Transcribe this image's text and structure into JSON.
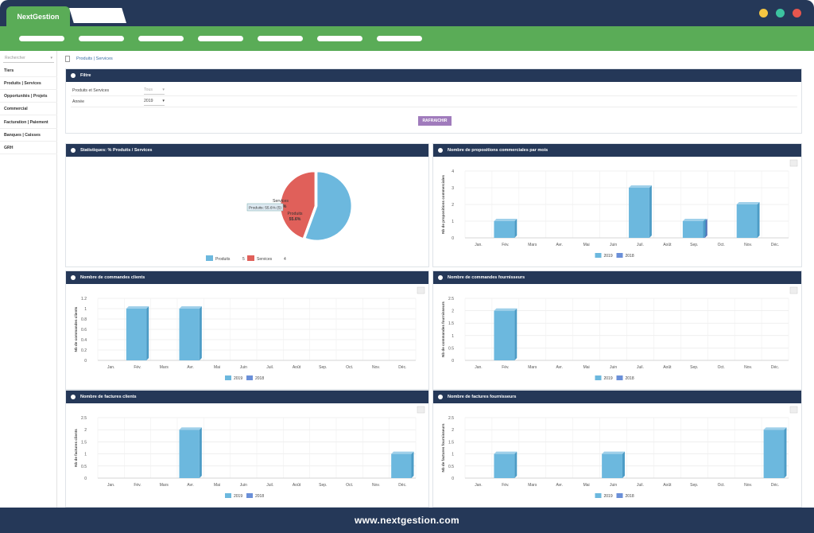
{
  "browser": {
    "tab_title": "NextGestion",
    "window_dot_colors": [
      "#f4c542",
      "#3cc3a0",
      "#e6564e"
    ]
  },
  "sidebar": {
    "search_placeholder": "Rechercher",
    "items": [
      {
        "label": "Tiers"
      },
      {
        "label": "Produits | Services"
      },
      {
        "label": "Opportunités | Projets"
      },
      {
        "label": "Commercial"
      },
      {
        "label": "Facturation | Paiement"
      },
      {
        "label": "Banques | Caisses"
      },
      {
        "label": "GRH"
      }
    ]
  },
  "breadcrumb": {
    "text": "Produits | Services"
  },
  "filter": {
    "title": "Filtre",
    "rows": [
      {
        "label": "Produits et Services",
        "value": "Tous"
      },
      {
        "label": "Année",
        "value": "2019"
      }
    ],
    "refresh_label": "RAFRAICHIR"
  },
  "colors": {
    "header": "#253858",
    "green": "#5aac57",
    "series_2019": "#6cb8de",
    "series_2018": "#6a8fd8",
    "services": "#e0605a",
    "button": "#a07bbc"
  },
  "months": [
    "Jan.",
    "Fév.",
    "Mars",
    "Avr.",
    "Mai",
    "Juin",
    "Juil.",
    "Août",
    "Sep.",
    "Oct.",
    "Nov.",
    "Déc."
  ],
  "legend": {
    "y2019": "2019",
    "y2018": "2018"
  },
  "chart_data": [
    {
      "type": "pie",
      "title": "Statistiques: % Produits / Services",
      "labels": [
        "Produits",
        "Services"
      ],
      "values": [
        55.6,
        44.4
      ],
      "slice_labels": [
        "55.6%",
        "44.4%"
      ],
      "tooltip": "Produits: 55.6% (5)",
      "legend": [
        {
          "name": "Produits",
          "count": "5"
        },
        {
          "name": "Services",
          "count": "4"
        }
      ]
    },
    {
      "type": "bar",
      "title": "Nombre de propositions commerciales par mois",
      "ylabel": "Nb de propositions commerciales",
      "ylim": [
        0,
        4
      ],
      "yticks": [
        "0",
        "1",
        "2",
        "3",
        "4"
      ],
      "series": [
        {
          "name": "2019",
          "values": [
            0,
            1,
            0,
            0,
            0,
            0,
            3,
            0,
            1,
            0,
            2,
            0
          ]
        },
        {
          "name": "2018",
          "values": [
            0,
            0,
            0,
            0,
            0,
            0,
            0,
            0,
            1,
            0,
            0,
            0
          ]
        }
      ]
    },
    {
      "type": "bar",
      "title": "Nombre de commandes clients",
      "ylabel": "Nb de commandes clients",
      "ylim": [
        0,
        1.2
      ],
      "yticks": [
        "0",
        "0.2",
        "0.4",
        "0.6",
        "0.8",
        "1",
        "1.2"
      ],
      "series": [
        {
          "name": "2019",
          "values": [
            0,
            1,
            0,
            1,
            0,
            0,
            0,
            0,
            0,
            0,
            0,
            0
          ]
        },
        {
          "name": "2018",
          "values": [
            0,
            0,
            0,
            0,
            0,
            0,
            0,
            0,
            0,
            0,
            0,
            0
          ]
        }
      ]
    },
    {
      "type": "bar",
      "title": "Nombre de commandes fournisseurs",
      "ylabel": "Nb de commandes fournisseurs",
      "ylim": [
        0,
        2.5
      ],
      "yticks": [
        "0",
        "0.5",
        "1",
        "1.5",
        "2",
        "2.5"
      ],
      "series": [
        {
          "name": "2019",
          "values": [
            0,
            2,
            0,
            0,
            0,
            0,
            0,
            0,
            0,
            0,
            0,
            0
          ]
        },
        {
          "name": "2018",
          "values": [
            0,
            0,
            0,
            0,
            0,
            0,
            0,
            0,
            0,
            0,
            0,
            0
          ]
        }
      ]
    },
    {
      "type": "bar",
      "title": "Nombre de factures clients",
      "ylabel": "Nb de factures clients",
      "ylim": [
        0,
        2.5
      ],
      "yticks": [
        "0",
        "0.5",
        "1",
        "1.5",
        "2",
        "2.5"
      ],
      "series": [
        {
          "name": "2019",
          "values": [
            0,
            0,
            0,
            2,
            0,
            0,
            0,
            0,
            0,
            0,
            0,
            1
          ]
        },
        {
          "name": "2018",
          "values": [
            0,
            0,
            0,
            0,
            0,
            0,
            0,
            0,
            0,
            0,
            0,
            0
          ]
        }
      ]
    },
    {
      "type": "bar",
      "title": "Nombre de factures fournisseurs",
      "ylabel": "Nb de factures fournisseurs",
      "ylim": [
        0,
        2.5
      ],
      "yticks": [
        "0",
        "0.5",
        "1",
        "1.5",
        "2",
        "2.5"
      ],
      "series": [
        {
          "name": "2019",
          "values": [
            0,
            1,
            0,
            0,
            0,
            1,
            0,
            0,
            0,
            0,
            0,
            2
          ]
        },
        {
          "name": "2018",
          "values": [
            0,
            0,
            0,
            0,
            0,
            0,
            0,
            0,
            0,
            0,
            0,
            0
          ]
        }
      ]
    }
  ],
  "footer": {
    "text": "www.nextgestion.com"
  }
}
